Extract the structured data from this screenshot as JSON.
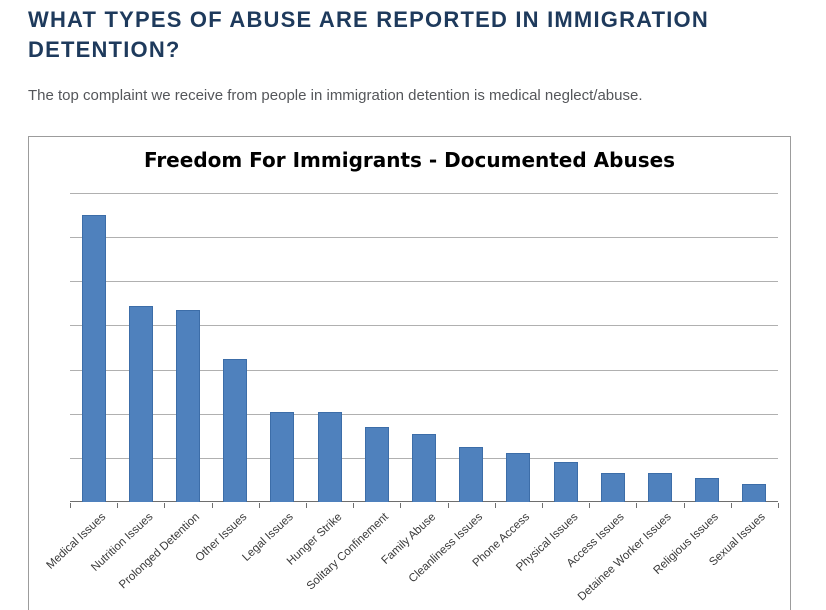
{
  "page": {
    "heading_line1": "WHAT TYPES OF ABUSE ARE REPORTED IN IMMIGRATION",
    "heading_line2": "DETENTION?",
    "subtitle": "The top complaint we receive from people in immigration detention is medical neglect/abuse."
  },
  "colors": {
    "heading": "#1e3a5c",
    "subtitle": "#54565a",
    "bar": "#4f81bd",
    "bar-border": "#3c6da8",
    "gridline": "#b0b0b0",
    "axis": "#6e6e6e",
    "label": "#3a3a3a",
    "chart-border": "#9c9c9c",
    "bg": "#ffffff"
  },
  "chart_data": {
    "type": "bar",
    "title": "Freedom For Immigrants - Documented Abuses",
    "categories": [
      "Medical Issues",
      "Nutrition Issues",
      "Prolonged Detention",
      "Other Issues",
      "Legal Issues",
      "Hunger Strike",
      "Solitary Confinement",
      "Family Abuse",
      "Cleanliness Issues",
      "Phone Access",
      "Physical Issues",
      "Access Issues",
      "Detainee Worker Issues",
      "Religious Issues",
      "Sexual Issues"
    ],
    "values": [
      650,
      445,
      435,
      325,
      205,
      205,
      170,
      155,
      125,
      110,
      90,
      65,
      65,
      55,
      40
    ],
    "xlabel": "",
    "ylabel": "",
    "ylim": [
      0,
      700
    ],
    "gridline_step": 100,
    "y_tick_labels_visible": false,
    "grid": "horizontal",
    "legend_position": "none",
    "note": "Y-axis has no visible numeric labels; values estimated in gridline units (1 gridline interval = 100)."
  }
}
